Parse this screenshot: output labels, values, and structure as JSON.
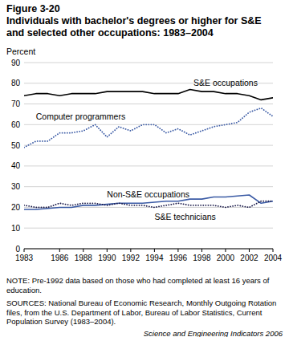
{
  "chart_data": {
    "type": "line",
    "figure_label": "Figure 3-20",
    "title": "Individuals with bachelor's degrees or higher for S&E and selected other occupations: 1983–2004",
    "y_label": "Percent",
    "x": [
      1983,
      1984,
      1985,
      1986,
      1987,
      1988,
      1989,
      1990,
      1991,
      1992,
      1993,
      1994,
      1995,
      1996,
      1997,
      1998,
      1999,
      2000,
      2001,
      2002,
      2003,
      2004
    ],
    "series": [
      {
        "name": "S&E occupations",
        "color": "#000000",
        "line_style": "solid",
        "values": [
          74,
          75,
          75,
          74,
          75,
          75,
          75,
          76,
          76,
          76,
          76,
          75,
          75,
          75,
          77,
          76,
          76,
          75,
          75,
          74,
          72,
          73
        ]
      },
      {
        "name": "Computer programmers",
        "color": "#3b5ba5",
        "line_style": "dotted",
        "values": [
          49,
          52,
          52,
          56,
          56,
          57,
          60,
          54,
          59,
          57,
          60,
          60,
          56,
          58,
          55,
          57,
          59,
          60,
          61,
          66,
          68,
          64
        ]
      },
      {
        "name": "Non-S&E occupations",
        "color": "#3b5ba5",
        "line_style": "solid",
        "values": [
          19,
          19,
          19.5,
          20,
          20,
          21,
          21,
          21.5,
          22,
          22,
          22,
          22.5,
          23,
          23,
          24,
          24,
          25,
          25,
          25.5,
          26,
          22,
          23
        ]
      },
      {
        "name": "S&E technicians",
        "color": "#1a1a4a",
        "line_style": "dotted",
        "values": [
          21,
          20,
          20,
          22,
          21,
          22,
          22,
          21,
          22,
          21,
          21,
          20,
          21,
          22,
          21,
          21,
          21,
          20,
          21,
          20,
          23,
          23
        ]
      }
    ],
    "xlim": [
      1983,
      2004
    ],
    "xticks": [
      1983,
      1986,
      1988,
      1990,
      1992,
      1994,
      1996,
      1998,
      2000,
      2002,
      2004
    ],
    "ylim": [
      0,
      90
    ],
    "yticks": [
      0,
      10,
      20,
      30,
      40,
      50,
      60,
      70,
      80,
      90
    ],
    "grid": true,
    "note": "NOTE: Pre-1992 data based on those who had completed at least 16 years of education.",
    "sources": "SOURCES: National Bureau of Economic Research, Monthly Outgoing Rotation files, from the U.S. Department of Labor, Bureau of Labor Statistics, Current Population Survey (1983–2004).",
    "credit": "Science and Engineering Indicators 2006"
  }
}
